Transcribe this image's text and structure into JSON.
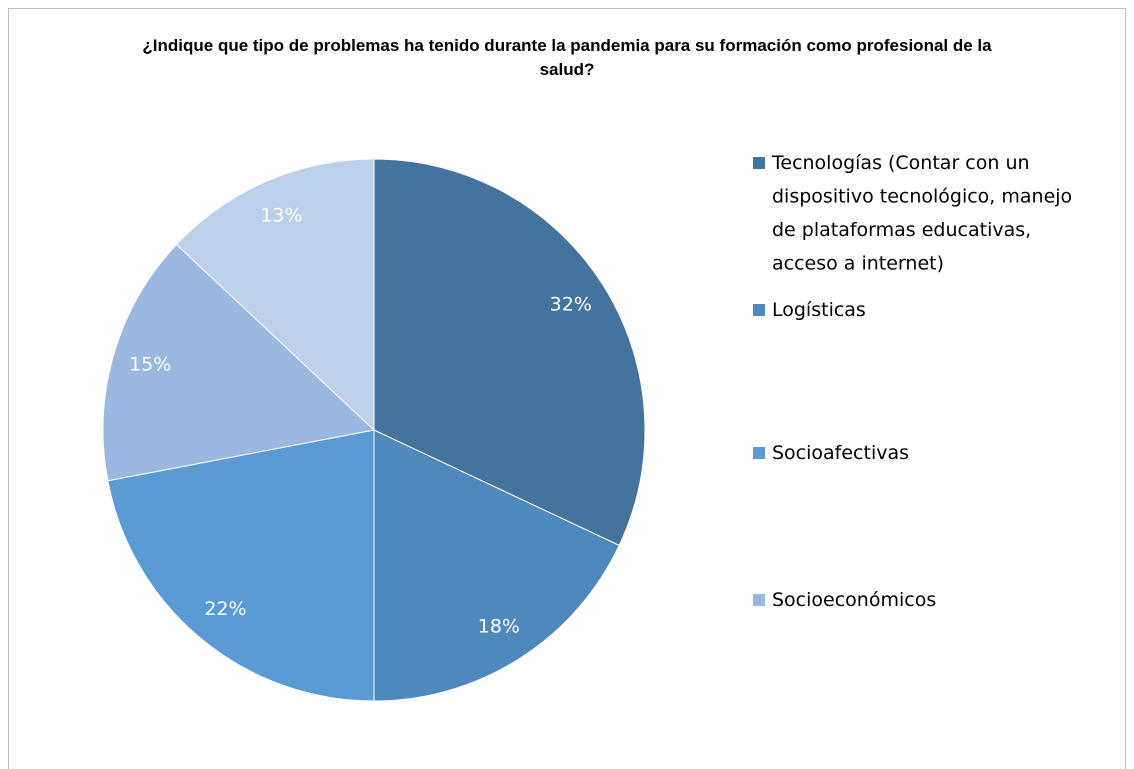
{
  "chart_data": {
    "type": "pie",
    "title": "¿Indique que tipo de problemas ha tenido durante la pandemia para su formación como profesional de la salud?",
    "categories": [
      "Tecnologías (Contar con un dispositivo tecnológico, manejo de plataformas educativas, acceso a internet)",
      "Logísticas",
      "Socioafectivas",
      "Socioeconómicos",
      null
    ],
    "values": [
      32,
      18,
      22,
      15,
      13
    ],
    "value_labels": [
      "32%",
      "18%",
      "22%",
      "15%",
      "13%"
    ],
    "colors": [
      "#44739e",
      "#4f88bd",
      "#5b9bd5",
      "#9ab8e0",
      "#bdd0ea"
    ],
    "legend": "right"
  }
}
